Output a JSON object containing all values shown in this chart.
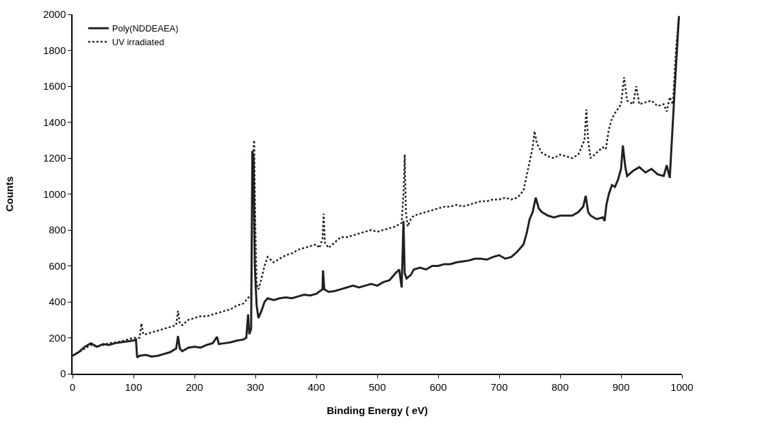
{
  "chart_data": {
    "type": "line",
    "xlabel": "Binding Energy ( eV)",
    "ylabel": "Counts",
    "xlim": [
      0,
      1000
    ],
    "ylim": [
      0,
      2000
    ],
    "xticks": [
      0,
      100,
      200,
      300,
      400,
      500,
      600,
      700,
      800,
      900,
      1000
    ],
    "yticks": [
      0,
      200,
      400,
      600,
      800,
      1000,
      1200,
      1400,
      1600,
      1800,
      2000
    ],
    "legend": "top left",
    "marker": "none",
    "series": [
      {
        "name": "Poly(NDDEAEA)",
        "color": "#231f20",
        "line_style": "solid",
        "x": [
          0,
          10,
          20,
          30,
          40,
          50,
          60,
          70,
          80,
          90,
          100,
          104,
          106,
          110,
          120,
          130,
          140,
          150,
          160,
          170,
          173,
          176,
          180,
          190,
          200,
          210,
          220,
          230,
          237,
          240,
          250,
          260,
          270,
          280,
          285,
          288,
          290,
          293,
          295,
          297,
          299,
          302,
          305,
          310,
          315,
          320,
          330,
          340,
          350,
          360,
          370,
          380,
          390,
          400,
          410,
          411,
          413,
          420,
          430,
          440,
          450,
          460,
          470,
          480,
          490,
          500,
          510,
          520,
          530,
          536,
          540,
          543,
          545,
          548,
          555,
          560,
          570,
          580,
          590,
          600,
          610,
          620,
          630,
          640,
          650,
          660,
          670,
          680,
          690,
          700,
          710,
          720,
          730,
          740,
          745,
          750,
          755,
          760,
          765,
          770,
          780,
          790,
          800,
          810,
          820,
          830,
          838,
          842,
          846,
          850,
          860,
          870,
          873,
          876,
          880,
          885,
          890,
          895,
          900,
          903,
          907,
          910,
          920,
          930,
          940,
          950,
          960,
          970,
          975,
          980,
          985,
          990,
          995
        ],
        "values": [
          100,
          120,
          150,
          170,
          150,
          165,
          160,
          170,
          175,
          180,
          185,
          190,
          90,
          100,
          105,
          95,
          100,
          110,
          120,
          140,
          210,
          140,
          125,
          145,
          150,
          145,
          160,
          170,
          205,
          165,
          170,
          175,
          185,
          190,
          200,
          330,
          220,
          250,
          1240,
          1200,
          600,
          380,
          310,
          350,
          400,
          420,
          410,
          420,
          425,
          420,
          430,
          440,
          435,
          445,
          470,
          575,
          470,
          455,
          460,
          470,
          480,
          490,
          480,
          490,
          500,
          490,
          510,
          520,
          560,
          580,
          480,
          850,
          560,
          530,
          550,
          580,
          590,
          580,
          600,
          600,
          610,
          610,
          620,
          625,
          630,
          640,
          640,
          635,
          650,
          660,
          640,
          650,
          680,
          720,
          780,
          860,
          900,
          980,
          920,
          900,
          880,
          870,
          880,
          880,
          880,
          900,
          930,
          990,
          900,
          880,
          860,
          870,
          850,
          940,
          1000,
          1050,
          1040,
          1080,
          1140,
          1270,
          1150,
          1100,
          1130,
          1150,
          1120,
          1140,
          1110,
          1100,
          1160,
          1090,
          1400,
          1700,
          1990
        ]
      },
      {
        "name": "UV irradiated",
        "color": "#231f20",
        "line_style": "dotted",
        "x": [
          0,
          10,
          20,
          30,
          40,
          50,
          60,
          70,
          80,
          90,
          100,
          110,
          113,
          116,
          120,
          130,
          140,
          150,
          160,
          170,
          173,
          176,
          180,
          190,
          200,
          210,
          220,
          230,
          240,
          250,
          260,
          270,
          280,
          285,
          290,
          293,
          296,
          298,
          300,
          302,
          305,
          310,
          315,
          320,
          330,
          340,
          350,
          360,
          370,
          380,
          390,
          400,
          405,
          410,
          412,
          414,
          420,
          430,
          440,
          450,
          460,
          470,
          480,
          490,
          500,
          510,
          520,
          530,
          540,
          543,
          545,
          547,
          550,
          555,
          560,
          570,
          580,
          590,
          600,
          610,
          620,
          630,
          640,
          650,
          660,
          670,
          680,
          690,
          700,
          710,
          720,
          730,
          740,
          745,
          750,
          755,
          758,
          762,
          770,
          780,
          790,
          800,
          810,
          820,
          830,
          835,
          840,
          843,
          846,
          850,
          860,
          870,
          875,
          880,
          885,
          890,
          900,
          905,
          910,
          920,
          925,
          930,
          940,
          950,
          960,
          970,
          975,
          980,
          985,
          990,
          995
        ],
        "values": [
          100,
          120,
          140,
          160,
          150,
          160,
          170,
          175,
          180,
          190,
          200,
          200,
          280,
          220,
          220,
          230,
          240,
          250,
          260,
          270,
          350,
          280,
          270,
          300,
          310,
          320,
          320,
          330,
          340,
          350,
          360,
          380,
          390,
          410,
          430,
          420,
          1200,
          1300,
          800,
          500,
          470,
          530,
          600,
          650,
          620,
          640,
          660,
          670,
          690,
          700,
          710,
          720,
          700,
          750,
          890,
          730,
          700,
          730,
          760,
          760,
          770,
          780,
          790,
          800,
          790,
          800,
          810,
          820,
          840,
          1000,
          1220,
          900,
          820,
          860,
          880,
          890,
          900,
          910,
          920,
          930,
          930,
          940,
          930,
          940,
          950,
          960,
          960,
          970,
          970,
          980,
          970,
          980,
          1020,
          1100,
          1180,
          1260,
          1350,
          1280,
          1230,
          1210,
          1200,
          1220,
          1210,
          1200,
          1220,
          1260,
          1300,
          1470,
          1300,
          1200,
          1230,
          1260,
          1250,
          1360,
          1420,
          1450,
          1500,
          1650,
          1520,
          1500,
          1600,
          1500,
          1510,
          1520,
          1490,
          1500,
          1460,
          1540,
          1500,
          1800,
          1990
        ]
      }
    ]
  }
}
